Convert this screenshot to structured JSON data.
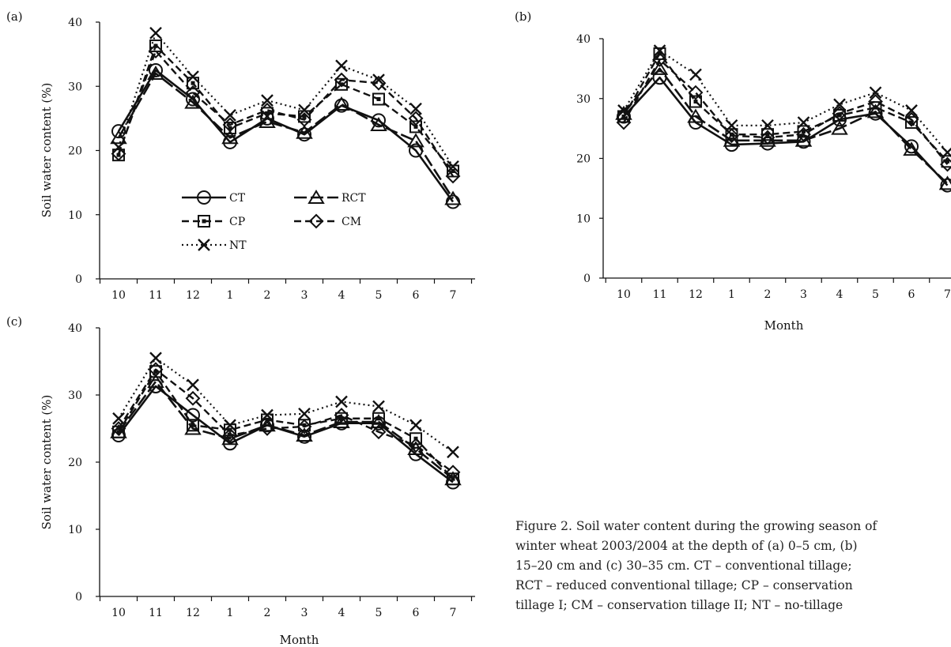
{
  "months": [
    "10",
    "11",
    "12",
    "1",
    "2",
    "3",
    "4",
    "5",
    "6",
    "7"
  ],
  "series_names": [
    "CT",
    "RCT",
    "CP",
    "CM",
    "NT"
  ],
  "chart_data": [
    {
      "type": "line",
      "panel_label": "(a)",
      "ylabel": "Soil water content (%)",
      "xlabel": "",
      "ylim": [
        0,
        40
      ],
      "yticks": [
        "0",
        "10",
        "20",
        "30",
        "40"
      ],
      "categories": [
        "10",
        "11",
        "12",
        "1",
        "2",
        "3",
        "4",
        "5",
        "6",
        "7"
      ],
      "legend_placement": "lower-left",
      "series": [
        {
          "name": "CT",
          "values": [
            23,
            32.5,
            28,
            21.3,
            25,
            22.5,
            27,
            24.7,
            20,
            12
          ]
        },
        {
          "name": "RCT",
          "values": [
            22,
            32,
            27.5,
            22,
            24.5,
            22.8,
            27.2,
            24,
            21.5,
            12.5
          ]
        },
        {
          "name": "CP",
          "values": [
            19.3,
            36.3,
            30.5,
            23.5,
            25.8,
            25.3,
            30.3,
            28,
            23.7,
            16.8
          ]
        },
        {
          "name": "CM",
          "values": [
            19.5,
            35.5,
            29,
            24,
            26.3,
            24.8,
            31,
            30.5,
            25,
            16
          ]
        },
        {
          "name": "NT",
          "values": [
            20.5,
            38.3,
            31.5,
            25.5,
            27.8,
            26.3,
            33.2,
            31,
            26.5,
            17.5
          ]
        }
      ]
    },
    {
      "type": "line",
      "panel_label": "(b)",
      "ylabel": "",
      "xlabel": "Month",
      "ylim": [
        0,
        40
      ],
      "yticks": [
        "0",
        "10",
        "20",
        "30",
        "40"
      ],
      "categories": [
        "10",
        "11",
        "12",
        "1",
        "2",
        "3",
        "4",
        "5",
        "6",
        "7"
      ],
      "series": [
        {
          "name": "CT",
          "values": [
            27,
            33.5,
            26,
            22.3,
            22.5,
            22.8,
            26.5,
            27.5,
            22,
            15.5
          ]
        },
        {
          "name": "RCT",
          "values": [
            27.5,
            35,
            27,
            23,
            23,
            23,
            25,
            27.8,
            21.5,
            15.8
          ]
        },
        {
          "name": "CP",
          "values": [
            27,
            37.5,
            29.5,
            24,
            24,
            24.5,
            27.2,
            28.5,
            26,
            19.5
          ]
        },
        {
          "name": "CM",
          "values": [
            26,
            36.5,
            31,
            23.8,
            23.5,
            24,
            27.5,
            29.5,
            26.5,
            19
          ]
        },
        {
          "name": "NT",
          "values": [
            28,
            38,
            34,
            25.5,
            25.5,
            26,
            29,
            31,
            28,
            21
          ]
        }
      ]
    },
    {
      "type": "line",
      "panel_label": "(c)",
      "ylabel": "Soil water content (%)",
      "xlabel": "Month",
      "ylim": [
        0,
        40
      ],
      "yticks": [
        "0",
        "10",
        "20",
        "30",
        "40"
      ],
      "categories": [
        "10",
        "11",
        "12",
        "1",
        "2",
        "3",
        "4",
        "5",
        "6",
        "7"
      ],
      "series": [
        {
          "name": "CT",
          "values": [
            24,
            31.3,
            27,
            22.8,
            25.5,
            23.8,
            25.8,
            25.8,
            21.2,
            17
          ]
        },
        {
          "name": "RCT",
          "values": [
            24.5,
            32,
            25,
            23.5,
            25.5,
            24,
            26,
            26,
            22,
            17.5
          ]
        },
        {
          "name": "CP",
          "values": [
            24.5,
            33.5,
            25.5,
            24.8,
            26.3,
            25.5,
            26.5,
            26.5,
            23.5,
            17.5
          ]
        },
        {
          "name": "CM",
          "values": [
            25,
            33.8,
            29.5,
            24,
            25,
            25.3,
            27,
            24.5,
            22.5,
            18.5
          ]
        },
        {
          "name": "NT",
          "values": [
            26.5,
            35.5,
            31.5,
            25.5,
            27,
            27.2,
            29,
            28.3,
            25.5,
            21.5
          ]
        }
      ]
    }
  ],
  "caption": "Figure 2. Soil water content during the growing season of\nwinter wheat 2003/2004 at the depth of (a) 0–5 cm, (b)\n15–20 cm and (c) 30–35 cm. CT – conventional tillage;\nRCT – reduced conventional tillage; CP – conservation\ntillage I; CM – conservation tillage II; NT – no-tillage"
}
